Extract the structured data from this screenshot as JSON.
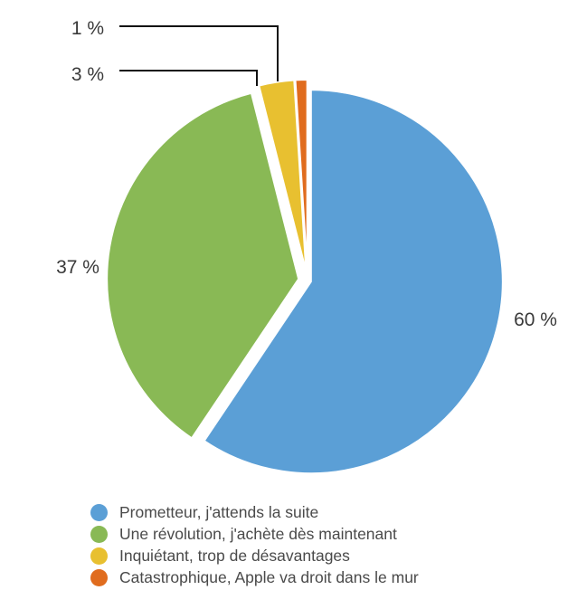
{
  "chart_data": {
    "type": "pie",
    "title": "",
    "start_angle_deg": 0,
    "direction": "clockwise",
    "exploded": true,
    "series": [
      {
        "name": "Prometteur, j'attends la suite",
        "value": 60,
        "label": "60 %",
        "color": "#5b9fd6",
        "label_placement": "right"
      },
      {
        "name": "Une révolution, j'achète dès maintenant",
        "value": 37,
        "label": "37 %",
        "color": "#89b955",
        "label_placement": "left"
      },
      {
        "name": "Inquiétant, trop de désavantages",
        "value": 3,
        "label": "3 %",
        "color": "#e8c030",
        "label_placement": "leader-line-top-left"
      },
      {
        "name": "Catastrophique, Apple va droit dans le mur",
        "value": 1,
        "label": "1 %",
        "color": "#e06c1e",
        "label_placement": "leader-line-top-left"
      }
    ],
    "legend": {
      "placement": "bottom-left"
    }
  }
}
